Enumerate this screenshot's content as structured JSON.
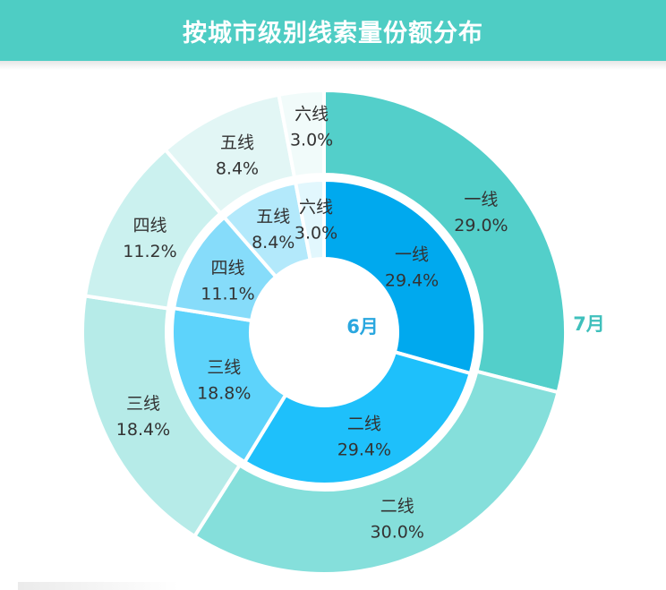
{
  "header": {
    "title": "按城市级别线索量份额分布"
  },
  "colors": {
    "header_bg": "#4ecdc4",
    "inner": [
      "#00a9ee",
      "#1ec0fb",
      "#5dd3fb",
      "#86dcfa",
      "#b3e9fb",
      "#e2f7fd"
    ],
    "outer": [
      "#53cfca",
      "#85dfdb",
      "#b6ebe8",
      "#cbf1ef",
      "#e2f6f5",
      "#f1fbfa"
    ]
  },
  "chart_data": {
    "type": "pie",
    "variant": "nested-donut",
    "categories": [
      "一线",
      "二线",
      "三线",
      "四线",
      "五线",
      "六线"
    ],
    "series": [
      {
        "name": "6月",
        "ring": "inner",
        "values": [
          29.4,
          29.4,
          18.8,
          11.1,
          8.4,
          3.0
        ],
        "labels": [
          "29.4%",
          "29.4%",
          "18.8%",
          "11.1%",
          "8.4%",
          "3.0%"
        ]
      },
      {
        "name": "7月",
        "ring": "outer",
        "values": [
          29.0,
          30.0,
          18.4,
          11.2,
          8.4,
          3.0
        ],
        "labels": [
          "29.0%",
          "30.0%",
          "18.4%",
          "11.2%",
          "8.4%",
          "3.0%"
        ]
      }
    ]
  }
}
